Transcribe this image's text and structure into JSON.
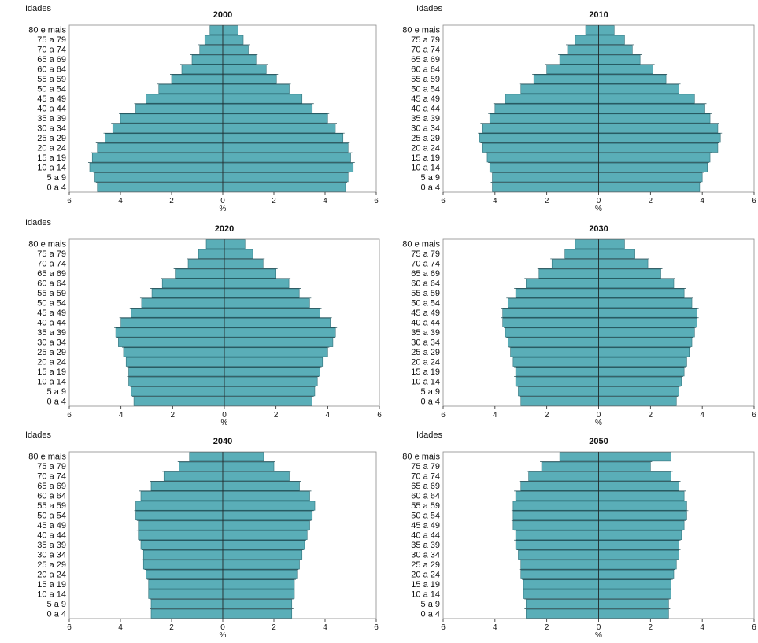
{
  "colors": {
    "bar": "#5aaeb8",
    "bar_stroke": "#2f6f78",
    "axis": "#222222",
    "frame": "#8a8a8a"
  },
  "chart_data": [
    {
      "type": "bar",
      "orientation": "horizontal",
      "subtype": "population-pyramid",
      "title": "2000",
      "ylabel": "Idades",
      "xlabel": "%",
      "xlim": [
        -6,
        6
      ],
      "xticks": [
        6,
        4,
        2,
        0,
        2,
        4,
        6
      ],
      "categories": [
        "80 e mais",
        "75 a 79",
        "70 a 74",
        "65 a 69",
        "60 a 64",
        "55 a 59",
        "50 a 54",
        "45 a 49",
        "40 a 44",
        "35 a 39",
        "30 a 34",
        "25 a 29",
        "20 a 24",
        "15 a 19",
        "10 a 14",
        "5 a 9",
        "0 a 4"
      ],
      "series": [
        {
          "values": [
            -0.5,
            -0.7,
            -0.9,
            -1.2,
            -1.6,
            -2.0,
            -2.5,
            -3.0,
            -3.4,
            -4.0,
            -4.3,
            -4.6,
            -4.9,
            -5.1,
            -5.2,
            -5.0,
            -4.9
          ]
        },
        {
          "values": [
            0.6,
            0.8,
            1.0,
            1.3,
            1.7,
            2.1,
            2.6,
            3.1,
            3.5,
            4.1,
            4.4,
            4.7,
            4.9,
            5.0,
            5.1,
            4.9,
            4.8
          ]
        }
      ]
    },
    {
      "type": "bar",
      "orientation": "horizontal",
      "subtype": "population-pyramid",
      "title": "2010",
      "ylabel": "Idades",
      "xlabel": "%",
      "xlim": [
        -6,
        6
      ],
      "xticks": [
        6,
        4,
        2,
        0,
        2,
        4,
        6
      ],
      "categories": [
        "80 e mais",
        "75 a 79",
        "70 a 74",
        "65 a 69",
        "60 a 64",
        "55 a 59",
        "50 a 54",
        "45 a 49",
        "40 a 44",
        "35 a 39",
        "30 a 34",
        "25 a 29",
        "20 a 24",
        "15 a 19",
        "10 a 14",
        "5 a 9",
        "0 a 4"
      ],
      "series": [
        {
          "values": [
            -0.5,
            -0.9,
            -1.2,
            -1.5,
            -2.0,
            -2.5,
            -3.0,
            -3.6,
            -4.0,
            -4.2,
            -4.5,
            -4.6,
            -4.5,
            -4.3,
            -4.2,
            -4.1,
            -4.1
          ]
        },
        {
          "values": [
            0.6,
            1.0,
            1.3,
            1.6,
            2.1,
            2.6,
            3.1,
            3.7,
            4.1,
            4.3,
            4.6,
            4.7,
            4.6,
            4.3,
            4.2,
            4.0,
            3.9
          ]
        }
      ]
    },
    {
      "type": "bar",
      "orientation": "horizontal",
      "subtype": "population-pyramid",
      "title": "2020",
      "ylabel": "Idades",
      "xlabel": "%",
      "xlim": [
        -6,
        6
      ],
      "xticks": [
        6,
        4,
        2,
        0,
        2,
        4,
        6
      ],
      "categories": [
        "80 e mais",
        "75 a 79",
        "70 a 74",
        "65 a 69",
        "60 a 64",
        "55 a 59",
        "50 a 54",
        "45 a 49",
        "40 a 44",
        "35 a 39",
        "30 a 34",
        "25 a 29",
        "20 a 24",
        "15 a 19",
        "10 a 14",
        "5 a 9",
        "0 a 4"
      ],
      "series": [
        {
          "values": [
            -0.7,
            -1.0,
            -1.4,
            -1.9,
            -2.4,
            -2.8,
            -3.2,
            -3.6,
            -4.0,
            -4.2,
            -4.1,
            -3.9,
            -3.8,
            -3.7,
            -3.7,
            -3.6,
            -3.5
          ]
        },
        {
          "values": [
            0.8,
            1.1,
            1.5,
            2.0,
            2.5,
            2.9,
            3.3,
            3.7,
            4.1,
            4.3,
            4.2,
            4.0,
            3.8,
            3.7,
            3.6,
            3.5,
            3.4
          ]
        }
      ]
    },
    {
      "type": "bar",
      "orientation": "horizontal",
      "subtype": "population-pyramid",
      "title": "2030",
      "ylabel": "",
      "xlabel": "%",
      "xlim": [
        -6,
        6
      ],
      "xticks": [
        6,
        4,
        2,
        0,
        2,
        4,
        6
      ],
      "categories": [
        "80 e mais",
        "75 a 79",
        "70 a 74",
        "65 a 69",
        "60 a 64",
        "55 a 59",
        "50 a 54",
        "45 a 49",
        "40 a 44",
        "35 a 39",
        "30 a 34",
        "25 a 29",
        "20 a 24",
        "15 a 19",
        "10 a 14",
        "5 a 9",
        "0 a 4"
      ],
      "series": [
        {
          "values": [
            -0.9,
            -1.3,
            -1.8,
            -2.3,
            -2.8,
            -3.2,
            -3.5,
            -3.7,
            -3.7,
            -3.6,
            -3.5,
            -3.4,
            -3.3,
            -3.2,
            -3.2,
            -3.1,
            -3.0
          ]
        },
        {
          "values": [
            1.0,
            1.4,
            1.9,
            2.4,
            2.9,
            3.3,
            3.6,
            3.8,
            3.8,
            3.7,
            3.6,
            3.5,
            3.4,
            3.3,
            3.2,
            3.1,
            3.0
          ]
        }
      ]
    },
    {
      "type": "bar",
      "orientation": "horizontal",
      "subtype": "population-pyramid",
      "title": "2040",
      "ylabel": "Idades",
      "xlabel": "%",
      "xlim": [
        -6,
        6
      ],
      "xticks": [
        6,
        4,
        2,
        0,
        2,
        4,
        6
      ],
      "categories": [
        "80 e mais",
        "75 a 79",
        "70 a 74",
        "65 a 69",
        "60 a 64",
        "55 a 59",
        "50 a 54",
        "45 a 49",
        "40 a 44",
        "35 a 39",
        "30 a 34",
        "25 a 29",
        "20 a 24",
        "15 a 19",
        "10 a 14",
        "5 a 9",
        "0 a 4"
      ],
      "series": [
        {
          "values": [
            -1.3,
            -1.7,
            -2.3,
            -2.8,
            -3.2,
            -3.4,
            -3.4,
            -3.3,
            -3.3,
            -3.2,
            -3.1,
            -3.1,
            -3.0,
            -2.9,
            -2.9,
            -2.8,
            -2.8
          ]
        },
        {
          "values": [
            1.6,
            2.0,
            2.6,
            3.0,
            3.4,
            3.6,
            3.5,
            3.4,
            3.3,
            3.2,
            3.1,
            3.0,
            2.9,
            2.8,
            2.8,
            2.7,
            2.7
          ]
        }
      ]
    },
    {
      "type": "bar",
      "orientation": "horizontal",
      "subtype": "population-pyramid",
      "title": "2050",
      "ylabel": "Idades",
      "xlabel": "%",
      "xlim": [
        -6,
        6
      ],
      "xticks": [
        6,
        4,
        2,
        0,
        2,
        4,
        6
      ],
      "categories": [
        "80 e mais",
        "75 a 79",
        "70 a 74",
        "65 a 69",
        "60 a 64",
        "55 a 59",
        "50 a 54",
        "45 a 49",
        "40 a 44",
        "35 a 39",
        "30 a 34",
        "25 a 29",
        "20 a 24",
        "15 a 19",
        "10 a 14",
        "5 a 9",
        "0 a 4"
      ],
      "series": [
        {
          "values": [
            -1.5,
            -2.2,
            -2.7,
            -3.0,
            -3.2,
            -3.3,
            -3.3,
            -3.3,
            -3.2,
            -3.2,
            -3.1,
            -3.0,
            -3.0,
            -2.9,
            -2.9,
            -2.8,
            -2.8
          ]
        },
        {
          "values": [
            2.8,
            2.0,
            2.8,
            3.1,
            3.3,
            3.4,
            3.4,
            3.3,
            3.2,
            3.1,
            3.1,
            3.0,
            2.9,
            2.8,
            2.8,
            2.7,
            2.7
          ]
        }
      ]
    }
  ]
}
